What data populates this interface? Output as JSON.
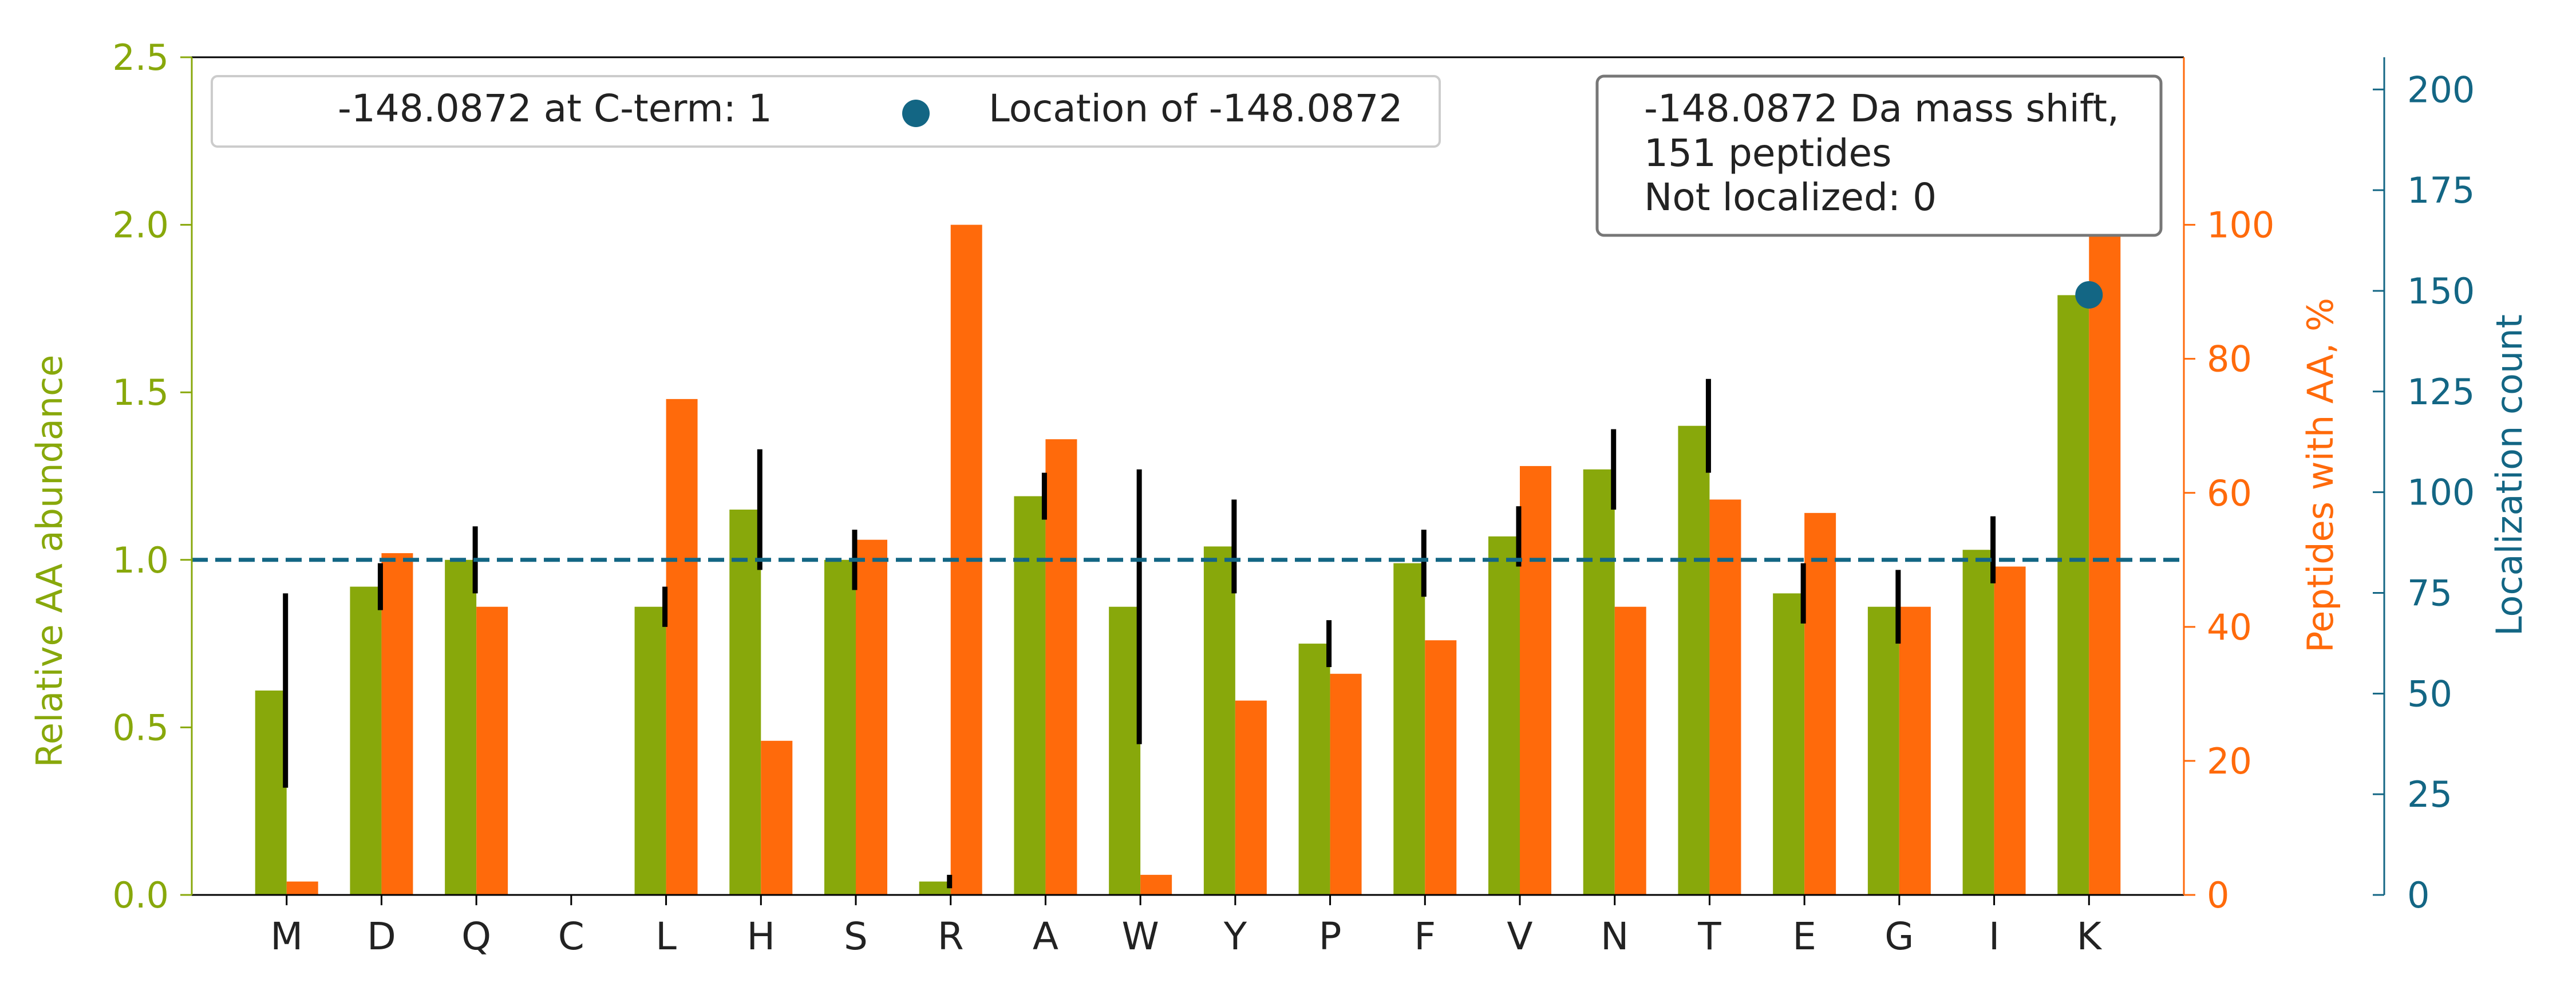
{
  "chart_data": {
    "type": "bar",
    "categories": [
      "M",
      "D",
      "Q",
      "C",
      "L",
      "H",
      "S",
      "R",
      "A",
      "W",
      "Y",
      "P",
      "F",
      "V",
      "N",
      "T",
      "E",
      "G",
      "I",
      "K"
    ],
    "series": [
      {
        "name": "",
        "axis": "left",
        "color": "#88a80b",
        "values": [
          0.61,
          0.92,
          1.0,
          0.0,
          0.86,
          1.15,
          1.0,
          0.04,
          1.19,
          0.86,
          1.04,
          0.75,
          0.99,
          1.07,
          1.27,
          1.4,
          0.9,
          0.86,
          1.03,
          1.79
        ],
        "error": [
          0.29,
          0.07,
          0.1,
          0.0,
          0.06,
          0.18,
          0.09,
          0.02,
          0.07,
          0.41,
          0.14,
          0.07,
          0.1,
          0.09,
          0.12,
          0.14,
          0.09,
          0.11,
          0.1,
          0.03
        ]
      },
      {
        "name": "",
        "axis": "right_orange",
        "color": "#ff6a0b",
        "values": [
          2,
          51,
          43,
          0,
          74,
          23,
          53,
          100,
          68,
          3,
          29,
          33,
          38,
          64,
          43,
          59,
          57,
          43,
          49,
          100
        ]
      }
    ],
    "localization_points": [
      {
        "category": "K",
        "value": 149
      }
    ],
    "reference_line": {
      "y": 1.0,
      "axis": "left",
      "style": "dashed",
      "color": "#136684"
    },
    "ylabel": "Relative AA abundance",
    "ylim": [
      0,
      2.5
    ],
    "yticks": [
      "0.0",
      "0.5",
      "1.0",
      "1.5",
      "2.0",
      "2.5"
    ],
    "y2label": "Peptides with AA, %",
    "y2lim": [
      0,
      125
    ],
    "y2ticks": [
      "0",
      "20",
      "40",
      "60",
      "80",
      "100"
    ],
    "y3label": "Localization count",
    "y3lim": [
      0,
      208
    ],
    "y3ticks": [
      "0",
      "25",
      "50",
      "75",
      "100",
      "125",
      "150",
      "175",
      "200"
    ],
    "legend": {
      "placement": "top-left",
      "items": [
        "-148.0872 at C-term: 1",
        "Location of -148.0872"
      ]
    },
    "info_box": {
      "placement": "top-right",
      "lines": [
        "-148.0872 Da mass shift,",
        "151 peptides",
        "Not localized: 0"
      ]
    },
    "colors": {
      "green": "#88a80b",
      "orange": "#ff6a0b",
      "blue": "#136684"
    }
  }
}
